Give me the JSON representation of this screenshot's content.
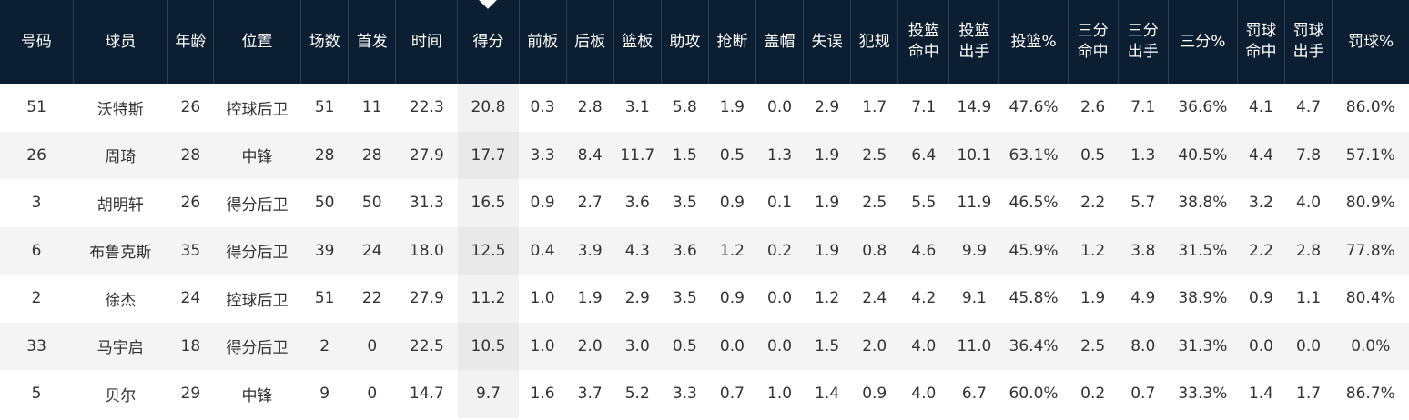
{
  "colors": {
    "header_bg": "#0c1e31",
    "header_text": "#ffffff",
    "row_alt_bg": "#f4f4f4",
    "sorted_col_bg": "#f2f2f2"
  },
  "table": {
    "sorted_column": "得分",
    "columns": [
      {
        "key": "num",
        "lines": [
          "号码"
        ]
      },
      {
        "key": "player",
        "lines": [
          "球员"
        ]
      },
      {
        "key": "age",
        "lines": [
          "年龄"
        ]
      },
      {
        "key": "position",
        "lines": [
          "位置"
        ]
      },
      {
        "key": "games",
        "lines": [
          "场数"
        ]
      },
      {
        "key": "starts",
        "lines": [
          "首发"
        ]
      },
      {
        "key": "minutes",
        "lines": [
          "时间"
        ]
      },
      {
        "key": "points",
        "lines": [
          "得分"
        ]
      },
      {
        "key": "off_reb",
        "lines": [
          "前板"
        ]
      },
      {
        "key": "def_reb",
        "lines": [
          "后板"
        ]
      },
      {
        "key": "reb",
        "lines": [
          "篮板"
        ]
      },
      {
        "key": "ast",
        "lines": [
          "助攻"
        ]
      },
      {
        "key": "stl",
        "lines": [
          "抢断"
        ]
      },
      {
        "key": "blk",
        "lines": [
          "盖帽"
        ]
      },
      {
        "key": "tov",
        "lines": [
          "失误"
        ]
      },
      {
        "key": "pf",
        "lines": [
          "犯规"
        ]
      },
      {
        "key": "fgm",
        "lines": [
          "投篮",
          "命中"
        ]
      },
      {
        "key": "fga",
        "lines": [
          "投篮",
          "出手"
        ]
      },
      {
        "key": "fg_pct",
        "lines": [
          "投篮%"
        ]
      },
      {
        "key": "tpm",
        "lines": [
          "三分",
          "命中"
        ]
      },
      {
        "key": "tpa",
        "lines": [
          "三分",
          "出手"
        ]
      },
      {
        "key": "tp_pct",
        "lines": [
          "三分%"
        ]
      },
      {
        "key": "ftm",
        "lines": [
          "罚球",
          "命中"
        ]
      },
      {
        "key": "fta",
        "lines": [
          "罚球",
          "出手"
        ]
      },
      {
        "key": "ft_pct",
        "lines": [
          "罚球%"
        ]
      }
    ],
    "rows": [
      [
        "51",
        "沃特斯",
        "26",
        "控球后卫",
        "51",
        "11",
        "22.3",
        "20.8",
        "0.3",
        "2.8",
        "3.1",
        "5.8",
        "1.9",
        "0.0",
        "2.9",
        "1.7",
        "7.1",
        "14.9",
        "47.6%",
        "2.6",
        "7.1",
        "36.6%",
        "4.1",
        "4.7",
        "86.0%"
      ],
      [
        "26",
        "周琦",
        "28",
        "中锋",
        "28",
        "28",
        "27.9",
        "17.7",
        "3.3",
        "8.4",
        "11.7",
        "1.5",
        "0.5",
        "1.3",
        "1.9",
        "2.5",
        "6.4",
        "10.1",
        "63.1%",
        "0.5",
        "1.3",
        "40.5%",
        "4.4",
        "7.8",
        "57.1%"
      ],
      [
        "3",
        "胡明轩",
        "26",
        "得分后卫",
        "50",
        "50",
        "31.3",
        "16.5",
        "0.9",
        "2.7",
        "3.6",
        "3.5",
        "0.9",
        "0.1",
        "1.9",
        "2.5",
        "5.5",
        "11.9",
        "46.5%",
        "2.2",
        "5.7",
        "38.8%",
        "3.2",
        "4.0",
        "80.9%"
      ],
      [
        "6",
        "布鲁克斯",
        "35",
        "得分后卫",
        "39",
        "24",
        "18.0",
        "12.5",
        "0.4",
        "3.9",
        "4.3",
        "3.6",
        "1.2",
        "0.2",
        "1.9",
        "0.8",
        "4.6",
        "9.9",
        "45.9%",
        "1.2",
        "3.8",
        "31.5%",
        "2.2",
        "2.8",
        "77.8%"
      ],
      [
        "2",
        "徐杰",
        "24",
        "控球后卫",
        "51",
        "22",
        "27.9",
        "11.2",
        "1.0",
        "1.9",
        "2.9",
        "3.5",
        "0.9",
        "0.0",
        "1.2",
        "2.4",
        "4.2",
        "9.1",
        "45.8%",
        "1.9",
        "4.9",
        "38.9%",
        "0.9",
        "1.1",
        "80.4%"
      ],
      [
        "33",
        "马宇启",
        "18",
        "得分后卫",
        "2",
        "0",
        "22.5",
        "10.5",
        "1.0",
        "2.0",
        "3.0",
        "0.5",
        "0.0",
        "0.0",
        "1.5",
        "2.0",
        "4.0",
        "11.0",
        "36.4%",
        "2.5",
        "8.0",
        "31.3%",
        "0.0",
        "0.0",
        "0.0%"
      ],
      [
        "5",
        "贝尔",
        "29",
        "中锋",
        "9",
        "0",
        "14.7",
        "9.7",
        "1.6",
        "3.7",
        "5.2",
        "3.3",
        "0.7",
        "1.0",
        "1.4",
        "0.9",
        "4.0",
        "6.7",
        "60.0%",
        "0.2",
        "0.7",
        "33.3%",
        "1.4",
        "1.7",
        "86.7%"
      ]
    ]
  }
}
